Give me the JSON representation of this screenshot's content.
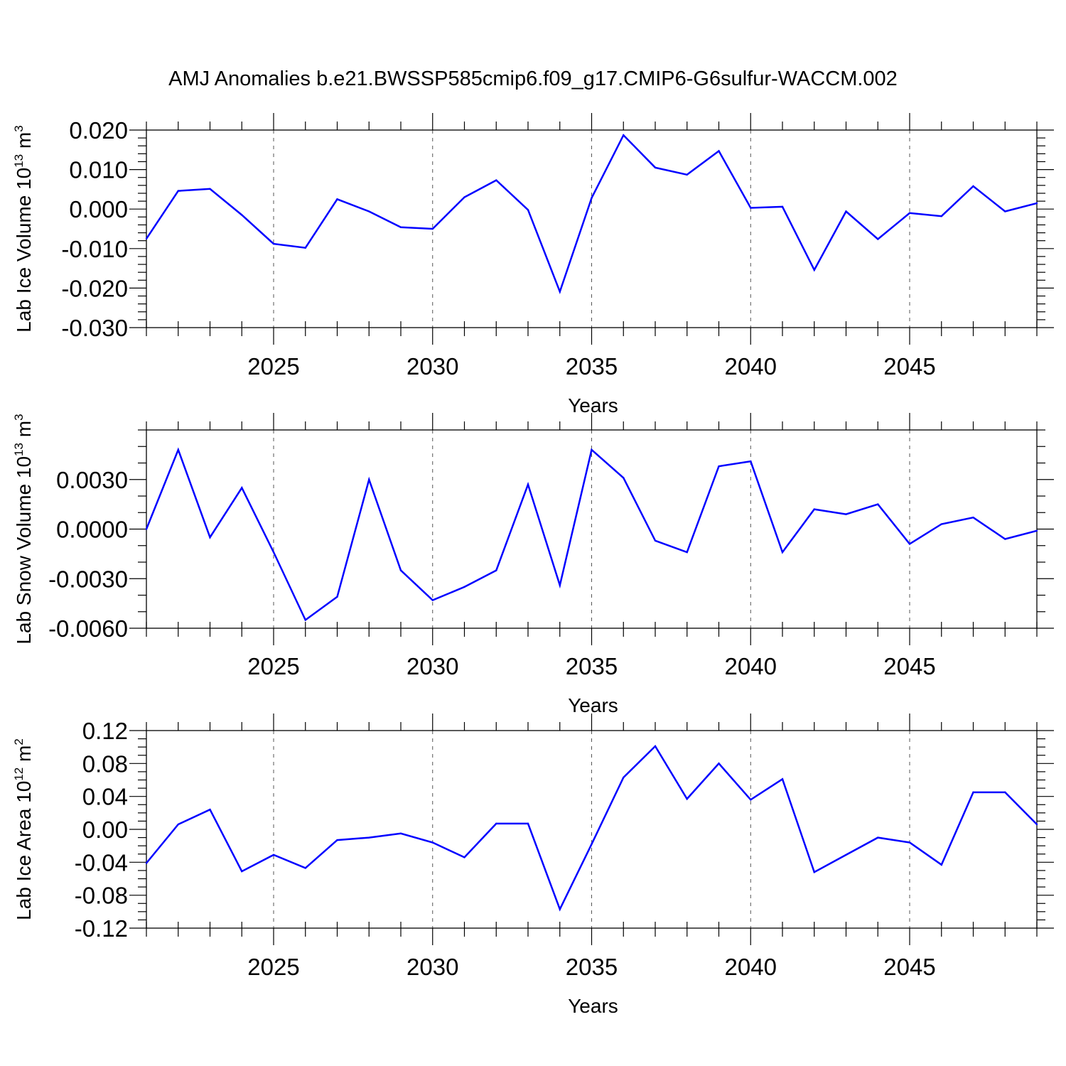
{
  "title": "AMJ Anomalies b.e21.BWSSP585cmip6.f09_g17.CMIP6-G6sulfur-WACCM.002",
  "line_color": "#0000ff",
  "chart_data": [
    {
      "type": "line",
      "ylabel_main": "Lab Ice Volume 10",
      "ylabel_exp": "13",
      "ylabel_unit": " m",
      "ylabel_unit_exp": "3",
      "xlabel": "Years",
      "xlim": [
        2021,
        2049
      ],
      "ylim": [
        -0.03,
        0.02
      ],
      "x_major_ticks": [
        2025,
        2030,
        2035,
        2040,
        2045
      ],
      "x_tick_labels": [
        "2025",
        "2030",
        "2035",
        "2040",
        "2045"
      ],
      "y_major_ticks": [
        -0.03,
        -0.02,
        -0.01,
        0.0,
        0.01,
        0.02
      ],
      "y_tick_labels": [
        "-0.030",
        "-0.020",
        "-0.010",
        "0.000",
        "0.010",
        "0.020"
      ],
      "y_minor_step": 0.002,
      "grid": "vertical dashed at major x ticks",
      "x": [
        2021,
        2022,
        2023,
        2024,
        2025,
        2026,
        2027,
        2028,
        2029,
        2030,
        2031,
        2032,
        2033,
        2034,
        2035,
        2036,
        2037,
        2038,
        2039,
        2040,
        2041,
        2042,
        2043,
        2044,
        2045,
        2046,
        2047,
        2048,
        2049
      ],
      "values": [
        -0.0075,
        0.0046,
        0.0051,
        -0.0015,
        -0.0088,
        -0.0098,
        0.0025,
        -0.0006,
        -0.0046,
        -0.005,
        0.003,
        0.0073,
        -0.0002,
        -0.0209,
        0.0028,
        0.0187,
        0.0105,
        0.0087,
        0.0147,
        0.0003,
        0.0006,
        -0.0154,
        -0.0006,
        -0.0076,
        -0.001,
        -0.0018,
        0.0058,
        -0.0006,
        0.0015
      ]
    },
    {
      "type": "line",
      "ylabel_main": "Lab Snow Volume 10",
      "ylabel_exp": "13",
      "ylabel_unit": " m",
      "ylabel_unit_exp": "3",
      "xlabel": "Years",
      "xlim": [
        2021,
        2049
      ],
      "ylim": [
        -0.006,
        0.006
      ],
      "x_major_ticks": [
        2025,
        2030,
        2035,
        2040,
        2045
      ],
      "x_tick_labels": [
        "2025",
        "2030",
        "2035",
        "2040",
        "2045"
      ],
      "y_major_ticks": [
        -0.006,
        -0.003,
        0.0,
        0.003
      ],
      "y_tick_labels": [
        "-0.0060",
        "-0.0030",
        "0.0000",
        "0.0030"
      ],
      "y_minor_step": 0.001,
      "grid": "vertical dashed at major x ticks",
      "x": [
        2021,
        2022,
        2023,
        2024,
        2025,
        2026,
        2027,
        2028,
        2029,
        2030,
        2031,
        2032,
        2033,
        2034,
        2035,
        2036,
        2037,
        2038,
        2039,
        2040,
        2041,
        2042,
        2043,
        2044,
        2045,
        2046,
        2047,
        2048,
        2049
      ],
      "values": [
        -0.0,
        0.0048,
        -0.0005,
        0.0025,
        -0.0014,
        -0.0055,
        -0.0041,
        0.003,
        -0.0025,
        -0.0043,
        -0.0035,
        -0.0025,
        0.0027,
        -0.0034,
        0.0048,
        0.0031,
        -0.0007,
        -0.0014,
        0.0038,
        0.0041,
        -0.0014,
        0.0012,
        0.0009,
        0.0015,
        -0.0009,
        0.0003,
        0.0007,
        -0.0006,
        -0.0001
      ]
    },
    {
      "type": "line",
      "ylabel_main": "Lab Ice Area 10",
      "ylabel_exp": "12",
      "ylabel_unit": " m",
      "ylabel_unit_exp": "2",
      "xlabel": "Years",
      "xlim": [
        2021,
        2049
      ],
      "ylim": [
        -0.12,
        0.12
      ],
      "x_major_ticks": [
        2025,
        2030,
        2035,
        2040,
        2045
      ],
      "x_tick_labels": [
        "2025",
        "2030",
        "2035",
        "2040",
        "2045"
      ],
      "y_major_ticks": [
        -0.12,
        -0.08,
        -0.04,
        0.0,
        0.04,
        0.08,
        0.12
      ],
      "y_tick_labels": [
        "-0.12",
        "-0.08",
        "-0.04",
        "0.00",
        "0.04",
        "0.08",
        "0.12"
      ],
      "y_minor_step": 0.01,
      "grid": "vertical dashed at major x ticks",
      "x": [
        2021,
        2022,
        2023,
        2024,
        2025,
        2026,
        2027,
        2028,
        2029,
        2030,
        2031,
        2032,
        2033,
        2034,
        2035,
        2036,
        2037,
        2038,
        2039,
        2040,
        2041,
        2042,
        2043,
        2044,
        2045,
        2046,
        2047,
        2048,
        2049
      ],
      "values": [
        -0.041,
        0.006,
        0.024,
        -0.051,
        -0.031,
        -0.047,
        -0.013,
        -0.01,
        -0.005,
        -0.016,
        -0.034,
        0.007,
        0.007,
        -0.097,
        -0.018,
        0.063,
        0.101,
        0.037,
        0.08,
        0.036,
        0.061,
        -0.052,
        -0.031,
        -0.01,
        -0.016,
        -0.043,
        0.045,
        0.045,
        0.006
      ]
    }
  ]
}
